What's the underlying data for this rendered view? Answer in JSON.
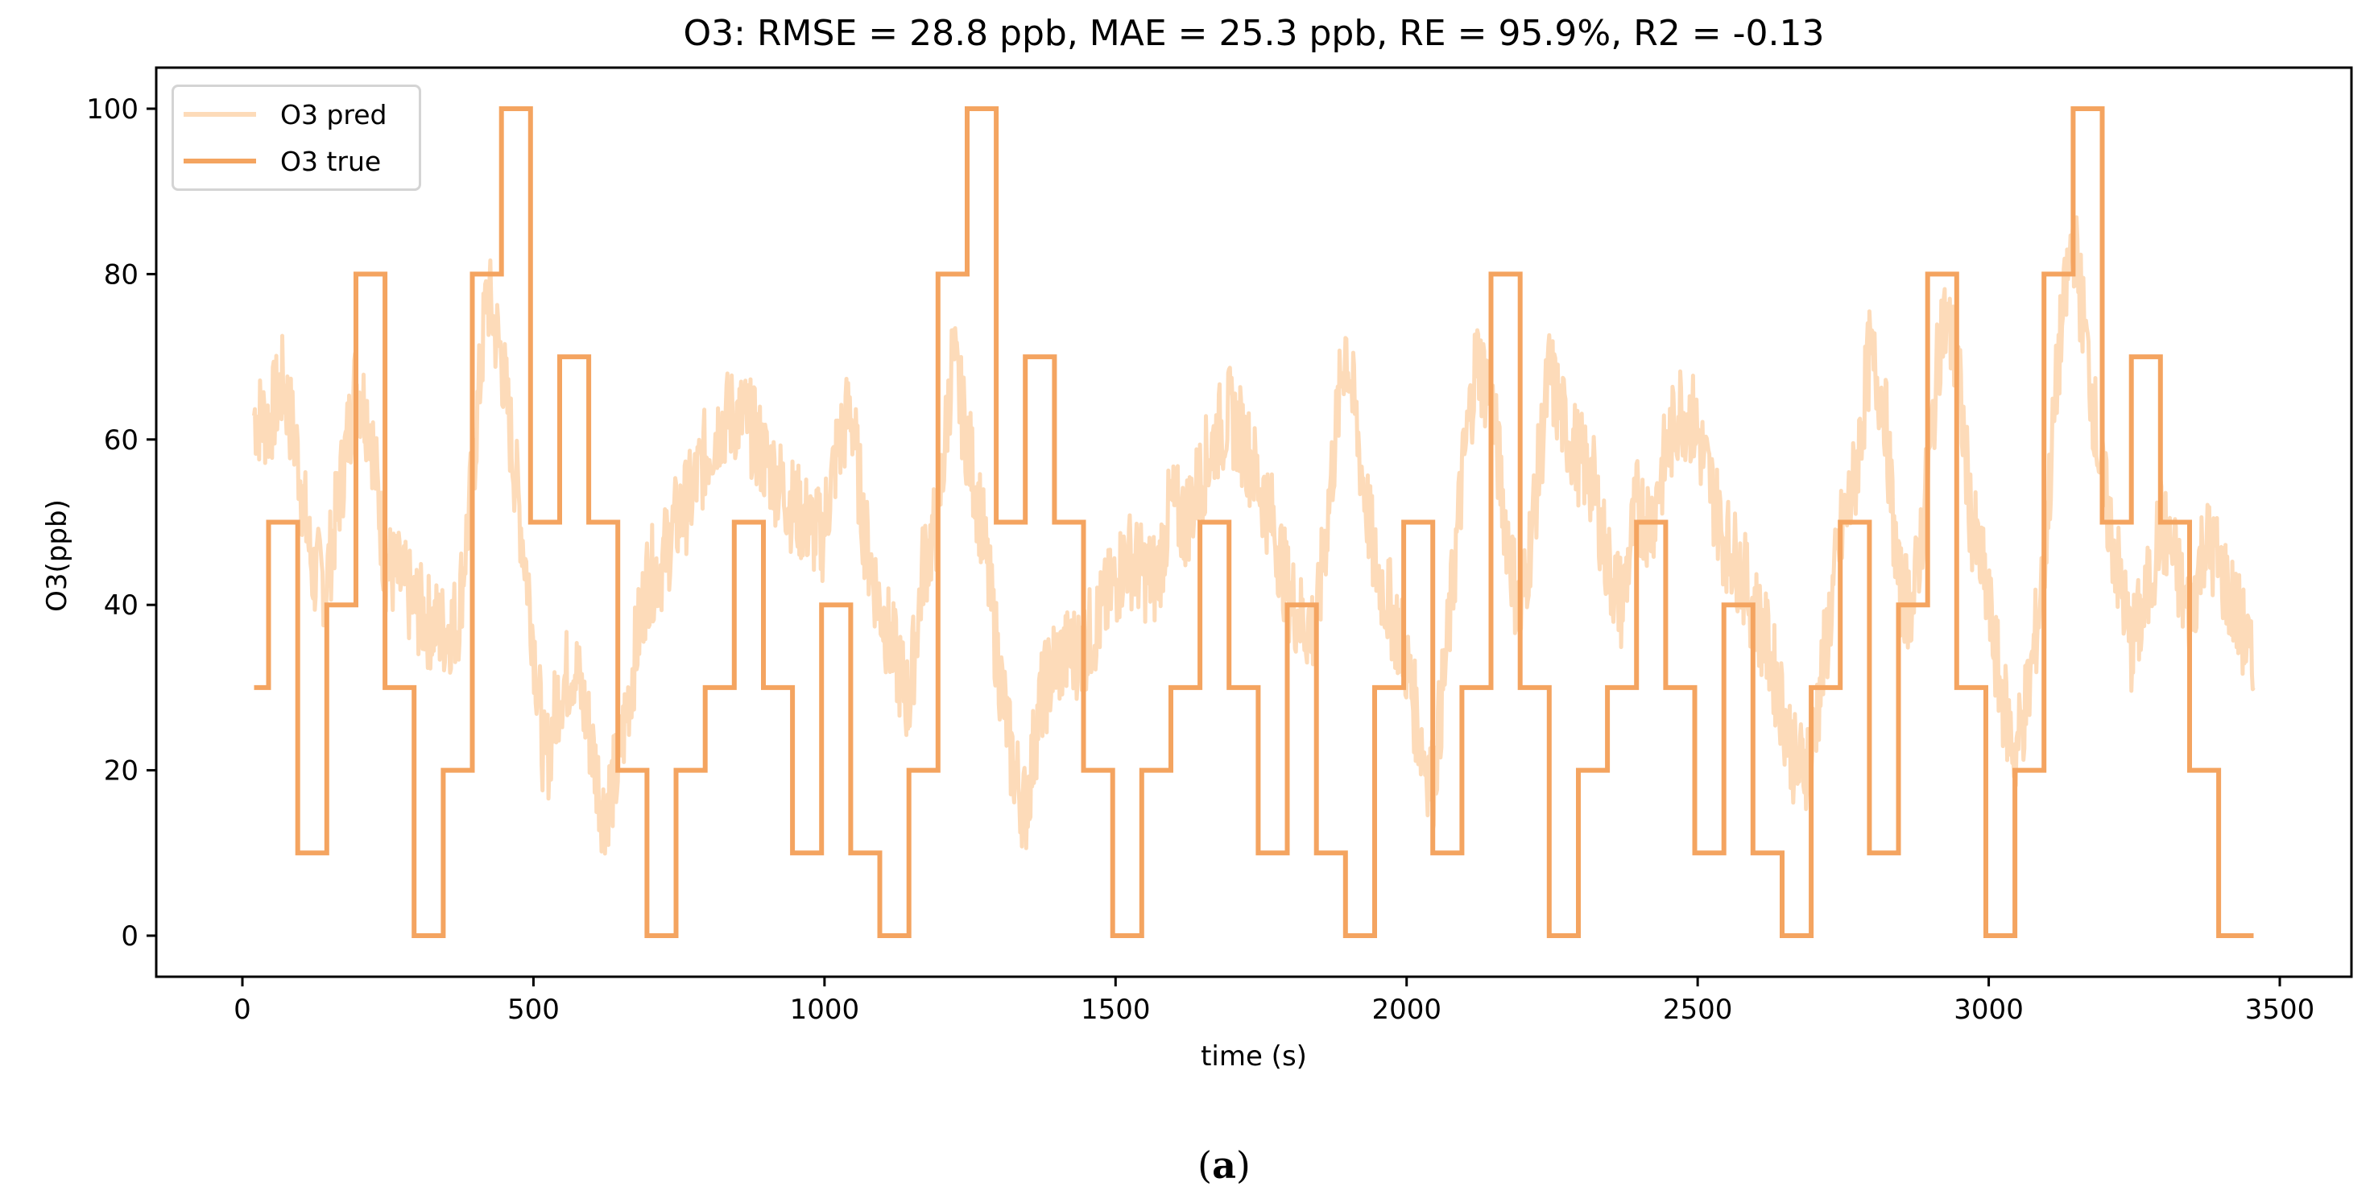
{
  "chart_data": {
    "type": "line",
    "title": "O3: RMSE = 28.8 ppb, MAE = 25.3 ppb, RE = 95.9%, R2 = -0.13",
    "xlabel": "time (s)",
    "ylabel": "O3(ppb)",
    "caption_open": "(",
    "caption_letter": "a",
    "caption_close": ")",
    "xlim": [
      -150,
      3650
    ],
    "ylim": [
      -5,
      105
    ],
    "xticks": [
      0,
      500,
      1000,
      1500,
      2000,
      2500,
      3000,
      3500
    ],
    "yticks": [
      0,
      20,
      40,
      60,
      80,
      100
    ],
    "grid": false,
    "legend_position": "upper left",
    "series": [
      {
        "name": "O3 pred",
        "color": "#FDDBB9",
        "style": "noisy-line",
        "x": [
          20,
          45,
          70,
          95,
          120,
          145,
          170,
          195,
          220,
          245,
          270,
          295,
          320,
          345,
          370,
          395,
          420,
          445,
          470,
          495,
          520,
          545,
          570,
          595,
          620,
          645,
          670,
          695,
          720,
          745,
          770,
          795,
          820,
          845,
          870,
          895,
          920,
          945,
          970,
          995,
          1020,
          1045,
          1070,
          1095,
          1120,
          1145,
          1170,
          1195,
          1220,
          1245,
          1270,
          1295,
          1320,
          1345,
          1370,
          1395,
          1420,
          1445,
          1470,
          1495,
          1520,
          1545,
          1570,
          1595,
          1620,
          1645,
          1670,
          1695,
          1720,
          1745,
          1770,
          1795,
          1820,
          1845,
          1870,
          1895,
          1920,
          1945,
          1970,
          1995,
          2020,
          2045,
          2070,
          2095,
          2120,
          2145,
          2170,
          2195,
          2220,
          2245,
          2270,
          2295,
          2320,
          2345,
          2370,
          2395,
          2420,
          2445,
          2470,
          2495,
          2520,
          2545,
          2570,
          2595,
          2620,
          2645,
          2670,
          2695,
          2720,
          2745,
          2770,
          2795,
          2820,
          2845,
          2870,
          2895,
          2920,
          2945,
          2970,
          2995,
          3020,
          3045,
          3070,
          3095,
          3120,
          3145,
          3170,
          3195,
          3220,
          3245,
          3270,
          3295,
          3320,
          3345,
          3370,
          3395,
          3420,
          3445,
          3455
        ],
        "values": [
          63,
          62,
          67,
          58,
          44,
          43,
          55,
          67,
          62,
          45,
          43,
          40,
          38,
          37,
          38,
          55,
          78,
          70,
          55,
          40,
          20,
          30,
          33,
          25,
          15,
          20,
          32,
          43,
          45,
          50,
          53,
          58,
          62,
          63,
          62,
          58,
          55,
          52,
          50,
          48,
          58,
          64,
          48,
          40,
          34,
          28,
          45,
          50,
          70,
          60,
          50,
          35,
          22,
          15,
          28,
          33,
          34,
          35,
          38,
          42,
          46,
          44,
          43,
          52,
          50,
          55,
          60,
          63,
          60,
          55,
          50,
          42,
          38,
          37,
          55,
          72,
          58,
          45,
          40,
          35,
          25,
          18,
          35,
          55,
          70,
          65,
          50,
          38,
          52,
          68,
          62,
          58,
          55,
          45,
          40,
          52,
          50,
          58,
          64,
          62,
          55,
          48,
          45,
          40,
          35,
          28,
          20,
          22,
          35,
          48,
          55,
          70,
          65,
          42,
          40,
          55,
          75,
          70,
          50,
          42,
          30,
          22,
          30,
          45,
          70,
          85,
          70,
          55,
          45,
          35,
          40,
          50,
          45,
          38,
          48,
          45,
          40,
          35,
          30
        ]
      },
      {
        "name": "O3 true",
        "color": "#F4A460",
        "style": "step",
        "x_start": 20,
        "x_end": 3455,
        "step_edges": [
          20,
          45,
          95,
          145,
          195,
          245,
          295,
          345,
          395,
          445,
          495,
          545,
          595,
          645,
          695,
          745,
          795,
          845,
          895,
          945,
          995,
          1045,
          1095,
          1145,
          1195,
          1245,
          1295,
          1345,
          1395,
          1445,
          1495,
          1545,
          1595,
          1645,
          1695,
          1745,
          1795,
          1845,
          1895,
          1945,
          1995,
          2045,
          2095,
          2145,
          2195,
          2245,
          2295,
          2345,
          2395,
          2445,
          2495,
          2545,
          2595,
          2645,
          2695,
          2745,
          2795,
          2845,
          2895,
          2945,
          2995,
          3045,
          3095,
          3145,
          3195,
          3245,
          3295,
          3345,
          3395
        ],
        "values": [
          30,
          50,
          10,
          40,
          80,
          30,
          0,
          20,
          80,
          100,
          50,
          70,
          50,
          20,
          0,
          20,
          30,
          50,
          30,
          10,
          40,
          10,
          0,
          20,
          80,
          100,
          50,
          70,
          50,
          20,
          0,
          20,
          30,
          50,
          30,
          10,
          40,
          10,
          0,
          30,
          50,
          10,
          30,
          80,
          30,
          0,
          20,
          30,
          50,
          30,
          10,
          40,
          10,
          0,
          30,
          50,
          10,
          40,
          80,
          30,
          0,
          20,
          80,
          100,
          50,
          70,
          50,
          20,
          0
        ]
      }
    ]
  },
  "legend": {
    "items": [
      {
        "label": "O3 pred",
        "color": "#FDDBB9"
      },
      {
        "label": "O3 true",
        "color": "#F4A460"
      }
    ]
  }
}
